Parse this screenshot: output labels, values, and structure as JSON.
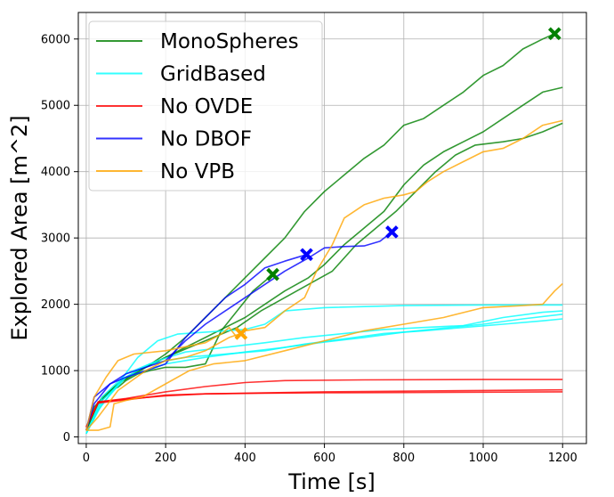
{
  "chart_data": {
    "type": "line",
    "title": "",
    "xlabel": "Time [s]",
    "ylabel": "Explored Area [m^2]",
    "xlim": [
      -20,
      1260
    ],
    "ylim": [
      -100,
      6400
    ],
    "xticks": [
      0,
      200,
      400,
      600,
      800,
      1000,
      1200
    ],
    "yticks": [
      0,
      1000,
      2000,
      3000,
      4000,
      5000,
      6000
    ],
    "grid": true,
    "legend_position": "top-left",
    "legend": [
      {
        "name": "MonoSpheres",
        "color": "#008000"
      },
      {
        "name": "GridBased",
        "color": "#00ffff"
      },
      {
        "name": "No OVDE",
        "color": "#ff0000"
      },
      {
        "name": "No DBOF",
        "color": "#0000ff"
      },
      {
        "name": "No VPB",
        "color": "#ffa500"
      }
    ],
    "series": [
      {
        "group": "MonoSpheres",
        "color": "#008000",
        "end_marker": true,
        "points": [
          [
            0,
            100
          ],
          [
            20,
            400
          ],
          [
            40,
            600
          ],
          [
            60,
            700
          ],
          [
            80,
            750
          ],
          [
            100,
            850
          ],
          [
            130,
            950
          ],
          [
            160,
            1000
          ],
          [
            200,
            1050
          ],
          [
            250,
            1050
          ],
          [
            300,
            1100
          ],
          [
            340,
            1600
          ],
          [
            380,
            1900
          ],
          [
            420,
            2200
          ],
          [
            470,
            2450
          ]
        ]
      },
      {
        "group": "MonoSpheres",
        "color": "#008000",
        "end_marker": true,
        "points": [
          [
            0,
            100
          ],
          [
            20,
            450
          ],
          [
            50,
            650
          ],
          [
            100,
            900
          ],
          [
            150,
            1050
          ],
          [
            200,
            1250
          ],
          [
            250,
            1500
          ],
          [
            300,
            1800
          ],
          [
            350,
            2100
          ],
          [
            400,
            2400
          ],
          [
            450,
            2700
          ],
          [
            500,
            3000
          ],
          [
            550,
            3400
          ],
          [
            600,
            3700
          ],
          [
            650,
            3950
          ],
          [
            700,
            4200
          ],
          [
            750,
            4400
          ],
          [
            800,
            4700
          ],
          [
            850,
            4800
          ],
          [
            900,
            5000
          ],
          [
            950,
            5200
          ],
          [
            1000,
            5450
          ],
          [
            1050,
            5600
          ],
          [
            1100,
            5850
          ],
          [
            1150,
            6000
          ],
          [
            1180,
            6080
          ]
        ]
      },
      {
        "group": "MonoSpheres",
        "color": "#008000",
        "end_marker": false,
        "points": [
          [
            0,
            100
          ],
          [
            30,
            500
          ],
          [
            80,
            800
          ],
          [
            130,
            1000
          ],
          [
            200,
            1200
          ],
          [
            250,
            1350
          ],
          [
            300,
            1500
          ],
          [
            350,
            1650
          ],
          [
            400,
            1800
          ],
          [
            450,
            2000
          ],
          [
            500,
            2200
          ],
          [
            560,
            2400
          ],
          [
            600,
            2600
          ],
          [
            650,
            2900
          ],
          [
            700,
            3150
          ],
          [
            750,
            3400
          ],
          [
            800,
            3800
          ],
          [
            850,
            4100
          ],
          [
            900,
            4300
          ],
          [
            950,
            4450
          ],
          [
            1000,
            4600
          ],
          [
            1050,
            4800
          ],
          [
            1100,
            5000
          ],
          [
            1150,
            5200
          ],
          [
            1200,
            5270
          ]
        ]
      },
      {
        "group": "MonoSpheres",
        "color": "#008000",
        "end_marker": false,
        "points": [
          [
            0,
            100
          ],
          [
            30,
            500
          ],
          [
            80,
            800
          ],
          [
            150,
            1050
          ],
          [
            200,
            1200
          ],
          [
            260,
            1350
          ],
          [
            320,
            1500
          ],
          [
            380,
            1650
          ],
          [
            440,
            1900
          ],
          [
            500,
            2100
          ],
          [
            560,
            2300
          ],
          [
            620,
            2500
          ],
          [
            680,
            2900
          ],
          [
            720,
            3100
          ],
          [
            780,
            3400
          ],
          [
            830,
            3700
          ],
          [
            880,
            4000
          ],
          [
            930,
            4250
          ],
          [
            980,
            4400
          ],
          [
            1050,
            4450
          ],
          [
            1100,
            4500
          ],
          [
            1150,
            4600
          ],
          [
            1200,
            4730
          ]
        ]
      },
      {
        "group": "GridBased",
        "color": "#00ffff",
        "end_marker": false,
        "points": [
          [
            0,
            50
          ],
          [
            30,
            400
          ],
          [
            80,
            800
          ],
          [
            130,
            1200
          ],
          [
            180,
            1450
          ],
          [
            230,
            1550
          ],
          [
            300,
            1580
          ],
          [
            400,
            1620
          ],
          [
            450,
            1700
          ],
          [
            500,
            1900
          ],
          [
            600,
            1950
          ],
          [
            800,
            1980
          ],
          [
            1000,
            1990
          ],
          [
            1200,
            1990
          ]
        ]
      },
      {
        "group": "GridBased",
        "color": "#00ffff",
        "end_marker": false,
        "points": [
          [
            0,
            50
          ],
          [
            40,
            500
          ],
          [
            100,
            900
          ],
          [
            160,
            1100
          ],
          [
            250,
            1200
          ],
          [
            350,
            1250
          ],
          [
            450,
            1300
          ],
          [
            550,
            1400
          ],
          [
            650,
            1480
          ],
          [
            750,
            1560
          ],
          [
            850,
            1600
          ],
          [
            950,
            1650
          ],
          [
            1050,
            1700
          ],
          [
            1150,
            1750
          ],
          [
            1200,
            1780
          ]
        ]
      },
      {
        "group": "GridBased",
        "color": "#00ffff",
        "end_marker": false,
        "points": [
          [
            0,
            50
          ],
          [
            40,
            600
          ],
          [
            100,
            950
          ],
          [
            180,
            1150
          ],
          [
            250,
            1280
          ],
          [
            350,
            1350
          ],
          [
            450,
            1420
          ],
          [
            550,
            1500
          ],
          [
            650,
            1560
          ],
          [
            750,
            1620
          ],
          [
            850,
            1650
          ],
          [
            950,
            1680
          ],
          [
            1050,
            1800
          ],
          [
            1150,
            1880
          ],
          [
            1200,
            1900
          ]
        ]
      },
      {
        "group": "GridBased",
        "color": "#00ffff",
        "end_marker": false,
        "points": [
          [
            0,
            50
          ],
          [
            40,
            550
          ],
          [
            100,
            900
          ],
          [
            200,
            1100
          ],
          [
            300,
            1200
          ],
          [
            400,
            1280
          ],
          [
            500,
            1350
          ],
          [
            600,
            1430
          ],
          [
            700,
            1500
          ],
          [
            800,
            1580
          ],
          [
            900,
            1640
          ],
          [
            1000,
            1700
          ],
          [
            1100,
            1780
          ],
          [
            1200,
            1850
          ]
        ]
      },
      {
        "group": "No OVDE",
        "color": "#ff0000",
        "end_marker": false,
        "points": [
          [
            0,
            150
          ],
          [
            30,
            520
          ],
          [
            100,
            570
          ],
          [
            200,
            620
          ],
          [
            300,
            650
          ],
          [
            400,
            660
          ],
          [
            600,
            680
          ],
          [
            800,
            690
          ],
          [
            1000,
            700
          ],
          [
            1200,
            710
          ]
        ]
      },
      {
        "group": "No OVDE",
        "color": "#ff0000",
        "end_marker": false,
        "points": [
          [
            0,
            150
          ],
          [
            30,
            530
          ],
          [
            100,
            580
          ],
          [
            200,
            680
          ],
          [
            300,
            760
          ],
          [
            400,
            820
          ],
          [
            500,
            850
          ],
          [
            700,
            860
          ],
          [
            1000,
            865
          ],
          [
            1200,
            865
          ]
        ]
      },
      {
        "group": "No OVDE",
        "color": "#ff0000",
        "end_marker": false,
        "points": [
          [
            0,
            150
          ],
          [
            30,
            510
          ],
          [
            100,
            560
          ],
          [
            200,
            630
          ],
          [
            300,
            650
          ],
          [
            450,
            660
          ],
          [
            600,
            665
          ],
          [
            800,
            670
          ],
          [
            1000,
            675
          ],
          [
            1200,
            680
          ]
        ]
      },
      {
        "group": "No DBOF",
        "color": "#0000ff",
        "end_marker": true,
        "points": [
          [
            0,
            100
          ],
          [
            20,
            600
          ],
          [
            60,
            800
          ],
          [
            100,
            900
          ],
          [
            150,
            1000
          ],
          [
            200,
            1100
          ],
          [
            250,
            1500
          ],
          [
            300,
            1800
          ],
          [
            350,
            2100
          ],
          [
            400,
            2300
          ],
          [
            450,
            2550
          ],
          [
            500,
            2650
          ],
          [
            555,
            2750
          ]
        ]
      },
      {
        "group": "No DBOF",
        "color": "#0000ff",
        "end_marker": true,
        "points": [
          [
            0,
            100
          ],
          [
            20,
            500
          ],
          [
            60,
            800
          ],
          [
            100,
            950
          ],
          [
            150,
            1050
          ],
          [
            200,
            1150
          ],
          [
            250,
            1450
          ],
          [
            300,
            1700
          ],
          [
            350,
            1900
          ],
          [
            400,
            2100
          ],
          [
            450,
            2300
          ],
          [
            500,
            2500
          ],
          [
            560,
            2700
          ],
          [
            600,
            2850
          ],
          [
            650,
            2870
          ],
          [
            700,
            2880
          ],
          [
            740,
            2950
          ],
          [
            770,
            3090
          ]
        ]
      },
      {
        "group": "No VPB",
        "color": "#ffa500",
        "end_marker": false,
        "points": [
          [
            0,
            100
          ],
          [
            20,
            600
          ],
          [
            50,
            900
          ],
          [
            80,
            1150
          ],
          [
            120,
            1250
          ],
          [
            200,
            1300
          ],
          [
            300,
            1420
          ],
          [
            340,
            1550
          ],
          [
            360,
            1650
          ],
          [
            380,
            1500
          ],
          [
            400,
            1600
          ],
          [
            450,
            1650
          ],
          [
            500,
            1900
          ],
          [
            550,
            2100
          ],
          [
            580,
            2500
          ],
          [
            620,
            2900
          ],
          [
            650,
            3300
          ],
          [
            700,
            3500
          ],
          [
            750,
            3600
          ],
          [
            800,
            3650
          ],
          [
            830,
            3700
          ],
          [
            860,
            3850
          ],
          [
            900,
            4000
          ],
          [
            950,
            4150
          ],
          [
            1000,
            4300
          ],
          [
            1050,
            4350
          ],
          [
            1100,
            4500
          ],
          [
            1150,
            4700
          ],
          [
            1200,
            4770
          ]
        ]
      },
      {
        "group": "No VPB",
        "color": "#ffa500",
        "end_marker": true,
        "points": [
          [
            0,
            100
          ],
          [
            30,
            300
          ],
          [
            80,
            700
          ],
          [
            150,
            1000
          ],
          [
            200,
            1150
          ],
          [
            250,
            1200
          ],
          [
            300,
            1300
          ],
          [
            330,
            1400
          ],
          [
            360,
            1500
          ],
          [
            390,
            1560
          ]
        ]
      },
      {
        "group": "No VPB",
        "color": "#ffa500",
        "end_marker": false,
        "points": [
          [
            0,
            100
          ],
          [
            30,
            100
          ],
          [
            60,
            150
          ],
          [
            70,
            500
          ],
          [
            100,
            550
          ],
          [
            140,
            600
          ],
          [
            200,
            800
          ],
          [
            260,
            1000
          ],
          [
            320,
            1100
          ],
          [
            400,
            1150
          ],
          [
            500,
            1300
          ],
          [
            600,
            1450
          ],
          [
            700,
            1600
          ],
          [
            800,
            1700
          ],
          [
            900,
            1800
          ],
          [
            1000,
            1950
          ],
          [
            1100,
            1980
          ],
          [
            1150,
            2000
          ],
          [
            1180,
            2200
          ],
          [
            1200,
            2310
          ]
        ]
      }
    ]
  }
}
